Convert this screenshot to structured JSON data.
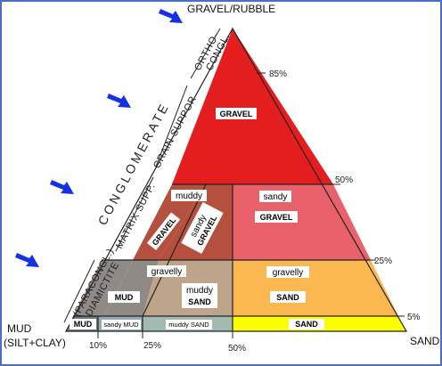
{
  "apex_label": "GRAVEL/RUBBLE",
  "bottom_left_label_line1": "MUD",
  "bottom_left_label_line2": "(SILT+CLAY)",
  "bottom_right_label": "SAND",
  "right_ticks": [
    "85%",
    "50%",
    "25%",
    "5%"
  ],
  "bottom_ticks": [
    "10%",
    "25%",
    "50%"
  ],
  "side_labels": {
    "ortho_line1": "ORTHO-",
    "ortho_line2": "CONGL.",
    "conglomerate": "CONGLOMERATE",
    "grain_support_line1": "GRAIN SUPPOR",
    "matrix_supp": "MATRIX SUPP.",
    "paracongl_line1": "(PARACONGL.)",
    "paracongl_line2": "DIAMICTITE"
  },
  "regions": {
    "gravel": "GRAVEL",
    "muddy_gravel_top": "muddy",
    "muddy_gravel_bottom": "GRAVEL",
    "sandy_gravel_diag_top": "sandy",
    "sandy_gravel_diag_bottom": "GRAVEL",
    "sandy_gravel_top": "sandy",
    "sandy_gravel_bottom": "GRAVEL",
    "gravelly_mud_top": "gravelly",
    "gravelly_mud_bottom": "MUD",
    "gravelly_muddy_sand_line1": "gravelly",
    "gravelly_muddy_sand_line2": "muddy",
    "gravelly_muddy_sand_line3": "SAND",
    "gravelly_sand_top": "gravelly",
    "gravelly_sand_bottom": "SAND",
    "mud": "MUD",
    "sandy_mud": "sandy MUD",
    "muddy_sand": "muddy SAND",
    "sand": "SAND"
  },
  "colors": {
    "gravel": "#e41e1e",
    "muddy_gravel": "#b5503f",
    "sandy_gravel": "#e8616b",
    "gravelly_mud": "#908a87",
    "gravelly_muddy_sand": "#bea48a",
    "gravelly_sand": "#fbb851",
    "mud": "#6e7b8f",
    "sandy_mud": "#9aa7b5",
    "muddy_sand": "#a2bbb2",
    "sand": "#fbfd01",
    "arrow": "#1431e6"
  },
  "arrows": [
    "arrow-1",
    "arrow-2",
    "arrow-3",
    "arrow-4"
  ]
}
